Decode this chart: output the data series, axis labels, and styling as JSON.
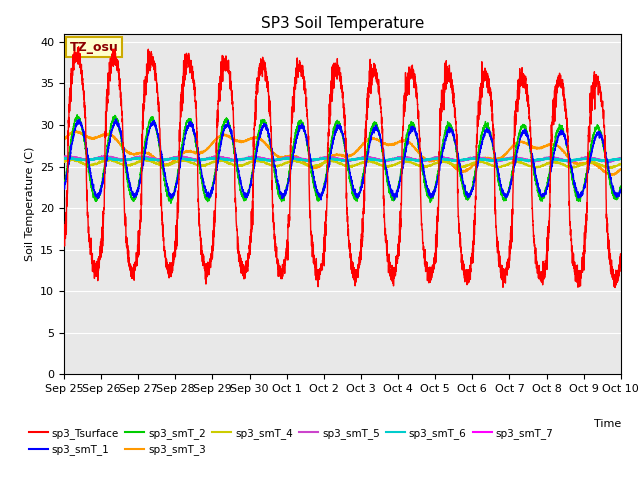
{
  "title": "SP3 Soil Temperature",
  "xlabel": "Time",
  "ylabel": "Soil Temperature (C)",
  "ylim": [
    0,
    41
  ],
  "yticks": [
    0,
    5,
    10,
    15,
    20,
    25,
    30,
    35,
    40
  ],
  "background_color": "#e8e8e8",
  "annotation_text": "TZ_osu",
  "annotation_color": "#8B0000",
  "annotation_bg": "#ffffcc",
  "annotation_border": "#ccaa00",
  "series_colors": {
    "sp3_Tsurface": "#ff0000",
    "sp3_smT_1": "#0000ff",
    "sp3_smT_2": "#00cc00",
    "sp3_smT_3": "#ff9900",
    "sp3_smT_4": "#cccc00",
    "sp3_smT_5": "#cc44cc",
    "sp3_smT_6": "#00cccc",
    "sp3_smT_7": "#ff00ff"
  },
  "x_tick_labels": [
    "Sep 25",
    "Sep 26",
    "Sep 27",
    "Sep 28",
    "Sep 29",
    "Sep 30",
    "Oct 1",
    "Oct 2",
    "Oct 3",
    "Oct 4",
    "Oct 5",
    "Oct 6",
    "Oct 7",
    "Oct 8",
    "Oct 9",
    "Oct 10"
  ],
  "n_days": 15,
  "pts_per_day": 288
}
